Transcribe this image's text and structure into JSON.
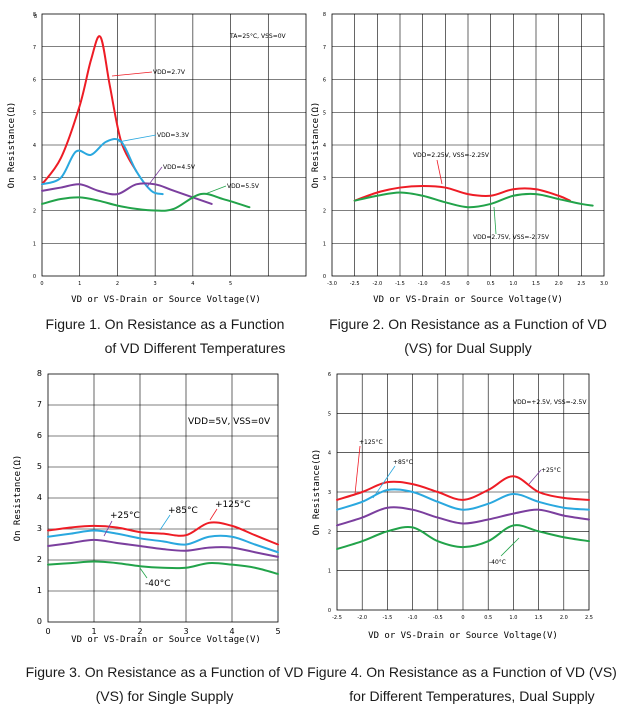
{
  "colors": {
    "red": "#ee1c25",
    "cyan": "#2aa8df",
    "purple": "#7b3f9e",
    "green": "#22a34a"
  },
  "captions": {
    "fig1": {
      "line1": "Figure 1. On Resistance as a Function",
      "line2": "of VD Different Temperatures"
    },
    "fig2": {
      "line1": "Figure 2. On Resistance as a Function of VD",
      "line2": "(VS) for Dual Supply"
    },
    "fig3": {
      "line1": "Figure 3. On Resistance as a Function of VD",
      "line2": "(VS) for Single Supply"
    },
    "fig4": {
      "line1": "Figure 4. On Resistance as a Function of VD (VS)",
      "line2": "for Different Temperatures, Dual Supply"
    }
  },
  "chart_data": [
    {
      "id": "fig1",
      "type": "line",
      "xlabel": "VD or VS-Drain or Source Voltage(V)",
      "ylabel": "On Resistance(Ω)",
      "xlim": [
        0,
        7
      ],
      "ylim": [
        0,
        8
      ],
      "xticks": [
        0,
        1,
        2,
        3,
        4,
        5
      ],
      "yticks": [
        0,
        1,
        2,
        3,
        4,
        5,
        6,
        7,
        8
      ],
      "annotation": "TA=25°C, VSS=0V",
      "series": [
        {
          "name": "VDD=2.7V",
          "color": "red",
          "x": [
            0,
            0.5,
            1,
            1.3,
            1.55,
            1.8,
            2.1,
            2.5
          ],
          "y": [
            2.8,
            3.6,
            5.2,
            6.6,
            7.3,
            5.8,
            4.1,
            3.2
          ]
        },
        {
          "name": "VDD=3.3V",
          "color": "cyan",
          "x": [
            0,
            0.5,
            0.9,
            1.3,
            1.7,
            2.1,
            2.5,
            2.9,
            3.2
          ],
          "y": [
            2.8,
            3.0,
            3.8,
            3.7,
            4.1,
            4.1,
            3.2,
            2.6,
            2.5
          ]
        },
        {
          "name": "VDD=4.5V",
          "color": "purple",
          "x": [
            0,
            0.5,
            1,
            1.5,
            2,
            2.5,
            3,
            3.5,
            4.5
          ],
          "y": [
            2.6,
            2.7,
            2.8,
            2.6,
            2.5,
            2.8,
            2.8,
            2.6,
            2.2
          ]
        },
        {
          "name": "VDD=5.5V",
          "color": "green",
          "x": [
            0,
            0.5,
            1,
            1.5,
            2,
            2.5,
            3,
            3.5,
            4.2,
            4.8,
            5.5
          ],
          "y": [
            2.2,
            2.35,
            2.4,
            2.3,
            2.15,
            2.05,
            2.0,
            2.05,
            2.5,
            2.35,
            2.1
          ]
        }
      ],
      "labels": [
        "VDD=2.7V",
        "VDD=3.3V",
        "VDD=4.5V",
        "VDD=5.5V"
      ]
    },
    {
      "id": "fig2",
      "type": "line",
      "xlabel": "VD or VS-Drain or Source Voltage(V)",
      "ylabel": "On Resistance(Ω)",
      "xlim": [
        -3,
        3
      ],
      "ylim": [
        0,
        8
      ],
      "xticks": [
        "-3.0",
        "-2.5",
        "-2.0",
        "-1.5",
        "-1.0",
        "-0.5",
        "0",
        "0.5",
        "1.0",
        "1.5",
        "2.0",
        "2.5",
        "3.0"
      ],
      "yticks": [
        0,
        1,
        2,
        3,
        4,
        5,
        6,
        7,
        8
      ],
      "series": [
        {
          "name": "VDD=2.25V, VSS=-2.25V",
          "color": "red",
          "x": [
            -2.5,
            -2,
            -1.5,
            -1,
            -0.5,
            0,
            0.5,
            1,
            1.5,
            2,
            2.25
          ],
          "y": [
            2.3,
            2.55,
            2.7,
            2.75,
            2.7,
            2.5,
            2.45,
            2.65,
            2.65,
            2.45,
            2.3
          ]
        },
        {
          "name": "VDD=2.75V, VSS=-2.75V",
          "color": "green",
          "x": [
            -2.5,
            -2,
            -1.5,
            -1,
            -0.5,
            0,
            0.5,
            1,
            1.5,
            2,
            2.5,
            2.75
          ],
          "y": [
            2.3,
            2.45,
            2.55,
            2.45,
            2.25,
            2.1,
            2.2,
            2.45,
            2.5,
            2.35,
            2.2,
            2.15
          ]
        }
      ],
      "labels": [
        "VDD=2.25V, VSS=-2.25V",
        "VDD=2.75V, VSS=-2.75V"
      ]
    },
    {
      "id": "fig3",
      "type": "line",
      "xlabel": "VD or VS-Drain or Source Voltage(V)",
      "ylabel": "On Resistance(Ω)",
      "xlim": [
        0,
        5
      ],
      "ylim": [
        0,
        8
      ],
      "xticks": [
        0,
        1,
        2,
        3,
        4,
        5
      ],
      "yticks": [
        0,
        1,
        2,
        3,
        4,
        5,
        6,
        7,
        8
      ],
      "annotation": "VDD=5V, VSS=0V",
      "series": [
        {
          "name": "+125°C",
          "color": "red",
          "x": [
            0,
            0.5,
            1,
            1.5,
            2,
            2.5,
            3,
            3.5,
            4,
            4.5,
            5
          ],
          "y": [
            2.95,
            3.05,
            3.1,
            3.05,
            2.9,
            2.85,
            2.8,
            3.2,
            3.1,
            2.8,
            2.5
          ]
        },
        {
          "name": "+85°C",
          "color": "cyan",
          "x": [
            0,
            0.5,
            1,
            1.5,
            2,
            2.5,
            3,
            3.5,
            4,
            4.5,
            5
          ],
          "y": [
            2.75,
            2.85,
            2.95,
            2.85,
            2.7,
            2.6,
            2.5,
            2.75,
            2.75,
            2.5,
            2.25
          ]
        },
        {
          "name": "+25°C",
          "color": "purple",
          "x": [
            0,
            0.5,
            1,
            1.5,
            2,
            2.5,
            3,
            3.5,
            4,
            4.5,
            5
          ],
          "y": [
            2.45,
            2.55,
            2.65,
            2.55,
            2.45,
            2.35,
            2.3,
            2.4,
            2.4,
            2.25,
            2.1
          ]
        },
        {
          "name": "-40°C",
          "color": "green",
          "x": [
            0,
            0.5,
            1,
            1.5,
            2,
            2.5,
            3,
            3.5,
            4,
            4.5,
            5
          ],
          "y": [
            1.85,
            1.9,
            1.95,
            1.9,
            1.8,
            1.75,
            1.75,
            1.9,
            1.85,
            1.75,
            1.55
          ]
        }
      ],
      "labels": [
        "+25°C",
        "+85°C",
        "+125°C",
        "-40°C"
      ]
    },
    {
      "id": "fig4",
      "type": "line",
      "xlabel": "VD or VS-Drain or Source Voltage(V)",
      "ylabel": "On Resistance(Ω)",
      "xlim": [
        -2.5,
        2.5
      ],
      "ylim": [
        0,
        6
      ],
      "xticks": [
        "-2.5",
        "-2.0",
        "-1.5",
        "-1.0",
        "-0.5",
        "0",
        "0.5",
        "1.0",
        "1.5",
        "2.0",
        "2.5"
      ],
      "yticks": [
        0,
        1,
        2,
        3,
        4,
        5,
        6
      ],
      "annotation": "VDD=+2.5V, VSS=-2.5V",
      "series": [
        {
          "name": "+125°C",
          "color": "red",
          "x": [
            -2.5,
            -2,
            -1.5,
            -1,
            -0.5,
            0,
            0.5,
            1,
            1.5,
            2,
            2.5
          ],
          "y": [
            2.8,
            3.0,
            3.25,
            3.2,
            3.0,
            2.8,
            3.05,
            3.4,
            3.0,
            2.85,
            2.8
          ]
        },
        {
          "name": "+85°C",
          "color": "cyan",
          "x": [
            -2.5,
            -2,
            -1.5,
            -1,
            -0.5,
            0,
            0.5,
            1,
            1.5,
            2,
            2.5
          ],
          "y": [
            2.55,
            2.75,
            3.05,
            3.0,
            2.75,
            2.55,
            2.7,
            2.95,
            2.75,
            2.6,
            2.55
          ]
        },
        {
          "name": "+25°C",
          "color": "purple",
          "x": [
            -2.5,
            -2,
            -1.5,
            -1,
            -0.5,
            0,
            0.5,
            1,
            1.5,
            2,
            2.5
          ],
          "y": [
            2.15,
            2.35,
            2.6,
            2.55,
            2.35,
            2.2,
            2.3,
            2.45,
            2.55,
            2.4,
            2.3
          ]
        },
        {
          "name": "-40°C",
          "color": "green",
          "x": [
            -2.5,
            -2,
            -1.5,
            -1,
            -0.5,
            0,
            0.5,
            1,
            1.5,
            2,
            2.5
          ],
          "y": [
            1.55,
            1.75,
            2.0,
            2.1,
            1.75,
            1.6,
            1.75,
            2.15,
            2.0,
            1.85,
            1.75
          ]
        }
      ],
      "labels": [
        "+125°C",
        "+85°C",
        "+25°C",
        "-40°C"
      ]
    }
  ]
}
